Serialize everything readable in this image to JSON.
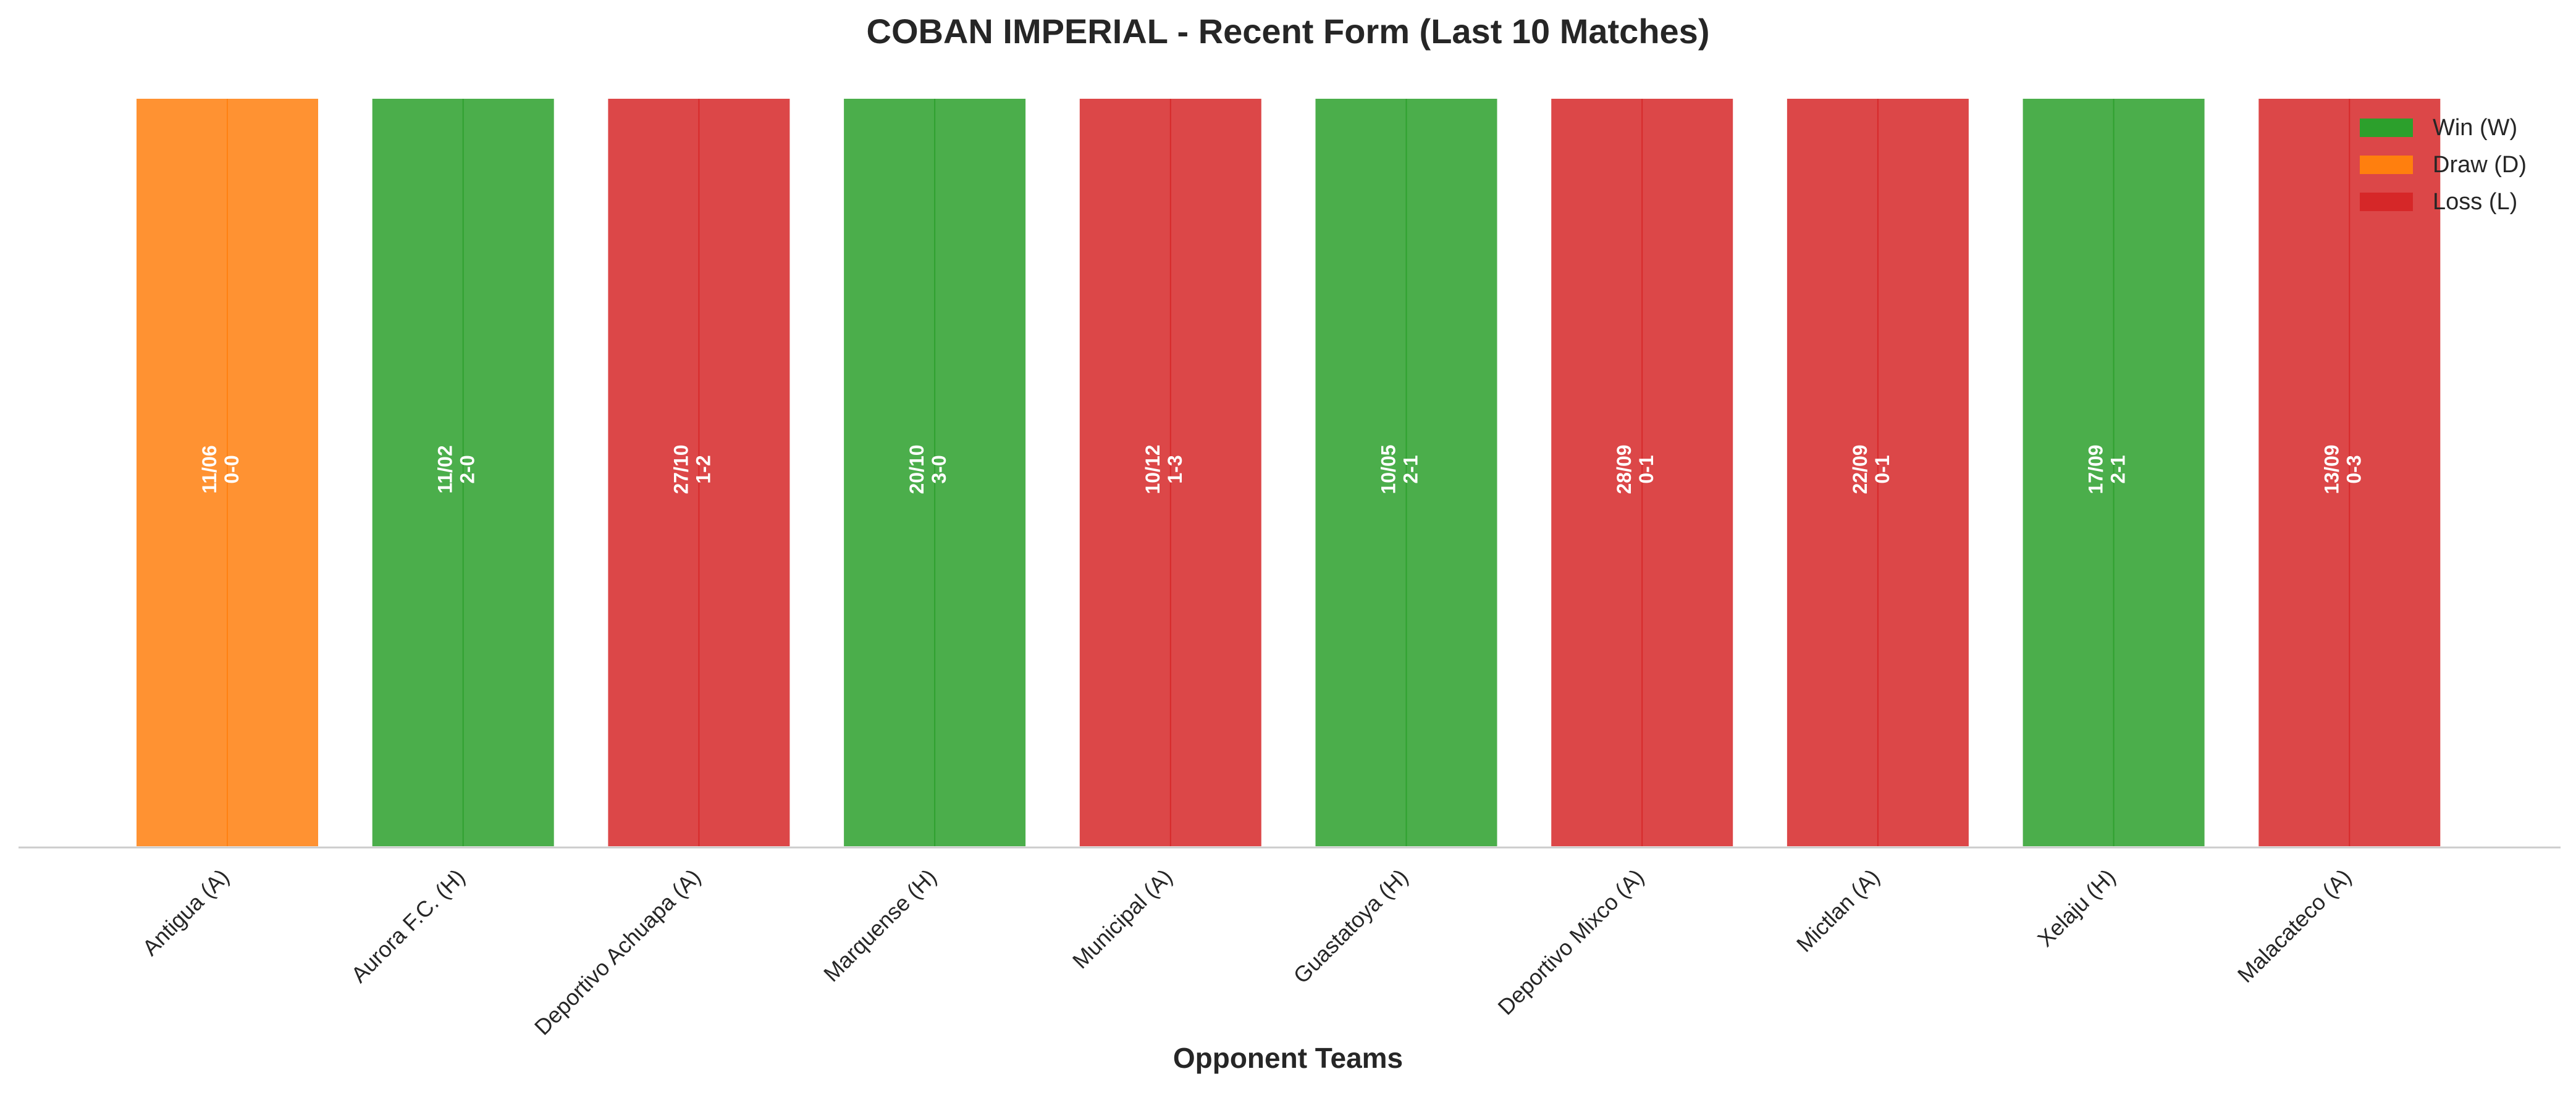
{
  "chart_data": {
    "type": "bar",
    "title": "COBAN IMPERIAL - Recent Form (Last 10 Matches)",
    "xlabel": "Opponent Teams",
    "ylabel": "",
    "ylim": [
      0,
      1
    ],
    "grid": false,
    "legend_position": "top-right",
    "categories": [
      "Antigua (A)",
      "Aurora F.C. (H)",
      "Deportivo Achuapa (A)",
      "Marquense (H)",
      "Municipal (A)",
      "Guastatoya (H)",
      "Deportivo Mixco (A)",
      "Mictlan (A)",
      "Xelaju (H)",
      "Malacateco (A)"
    ],
    "values": [
      1,
      1,
      1,
      1,
      1,
      1,
      1,
      1,
      1,
      1
    ],
    "results": [
      "D",
      "W",
      "L",
      "W",
      "L",
      "W",
      "L",
      "L",
      "W",
      "L"
    ],
    "dates": [
      "11/06",
      "11/02",
      "27/10",
      "20/10",
      "10/12",
      "10/05",
      "28/09",
      "22/09",
      "17/09",
      "13/09"
    ],
    "scores": [
      "0-0",
      "2-0",
      "1-2",
      "3-0",
      "1-3",
      "2-1",
      "0-1",
      "0-1",
      "2-1",
      "0-3"
    ],
    "colors": {
      "W": "#2ca02c",
      "D": "#ff7f0e",
      "L": "#d62728"
    },
    "legend": [
      {
        "key": "W",
        "label": "Win (W)"
      },
      {
        "key": "D",
        "label": "Draw (D)"
      },
      {
        "key": "L",
        "label": "Loss (L)"
      }
    ]
  }
}
